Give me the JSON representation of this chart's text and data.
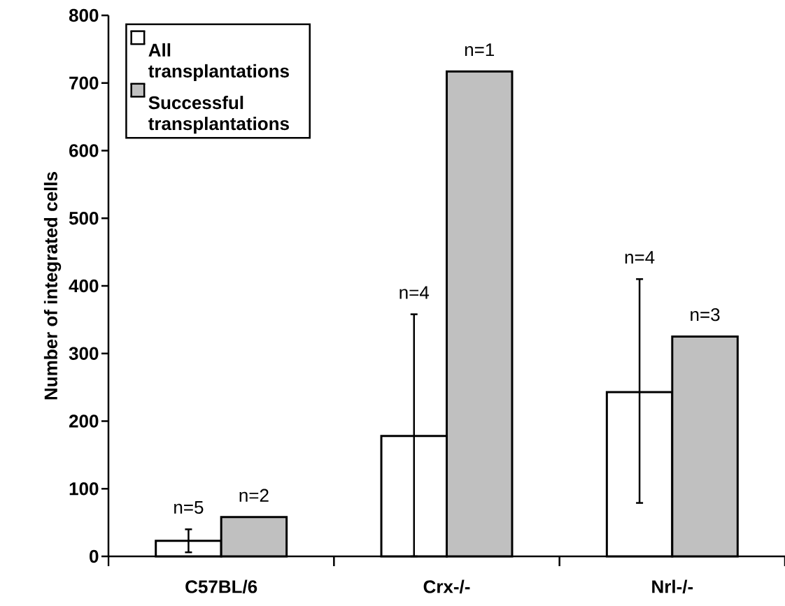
{
  "chart_data": {
    "type": "bar",
    "ylabel": "Number of integrated cells",
    "categories": [
      "C57BL/6",
      "Crx-/-",
      "Nrl-/-"
    ],
    "series": [
      {
        "name": "All transplantations",
        "color": "#ffffff",
        "values": [
          23,
          178,
          243
        ],
        "errors": [
          [
            6,
            40
          ],
          [
            0,
            358
          ],
          [
            79,
            410
          ]
        ]
      },
      {
        "name": "Successful transplantations",
        "color": "#c0c0c0",
        "values": [
          58,
          717,
          325
        ]
      }
    ],
    "annotations": [
      "n=5",
      "n=2",
      "n=4",
      "n=1",
      "n=4",
      "n=3"
    ],
    "ylim": [
      0,
      800
    ],
    "yticks": [
      0,
      100,
      200,
      300,
      400,
      500,
      600,
      700,
      800
    ],
    "grid": false,
    "legend": "top left"
  }
}
